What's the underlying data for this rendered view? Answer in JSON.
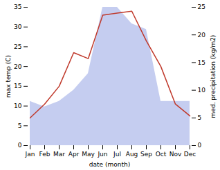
{
  "chart_data": {
    "type": "line",
    "xlabel": "date (month)",
    "ylabel": "max temp (C)",
    "y2label": "med. precipitation (kg/m2)",
    "categories": [
      "Jan",
      "Feb",
      "Mar",
      "Apr",
      "May",
      "Jun",
      "Jul",
      "Aug",
      "Sep",
      "Oct",
      "Nov",
      "Dec"
    ],
    "series": [
      {
        "type": "area",
        "axis": "y2",
        "color": "#c5cdf0",
        "values": [
          8,
          7,
          8,
          10,
          13,
          25,
          25,
          22,
          21,
          8,
          8,
          8
        ]
      },
      {
        "type": "line",
        "color": "#c0392b",
        "values": [
          7,
          10.5,
          15,
          23.5,
          22,
          33,
          33.5,
          34,
          26.5,
          20,
          10.5,
          7.5
        ]
      }
    ],
    "ylim": [
      0,
      35
    ],
    "yticks": [
      0,
      5,
      10,
      15,
      20,
      25,
      30,
      35
    ],
    "y2lim": [
      0,
      25
    ],
    "y2ticks": [
      0,
      5,
      10,
      15,
      20,
      25
    ],
    "grid": false
  }
}
